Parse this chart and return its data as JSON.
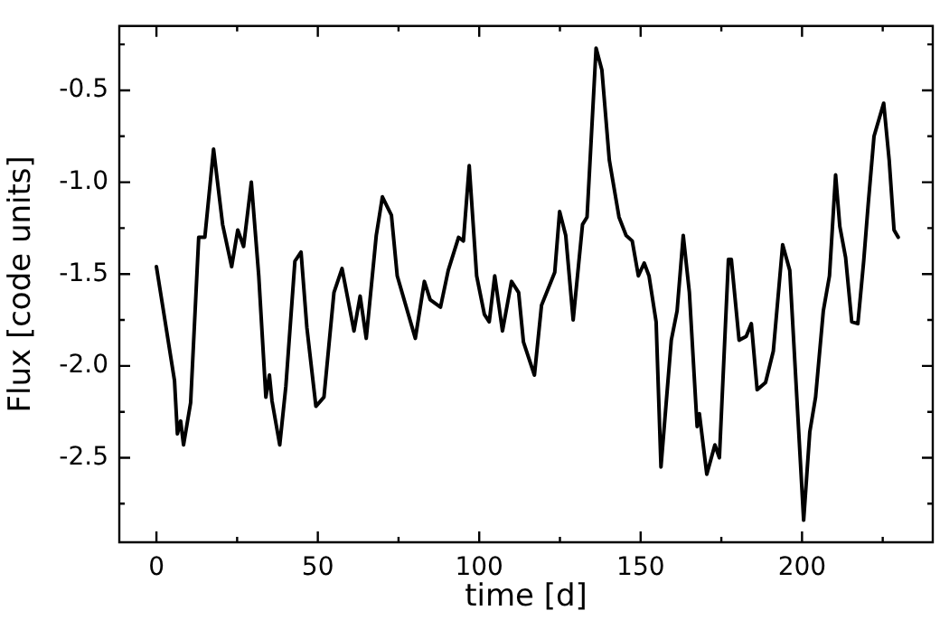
{
  "chart_data": {
    "type": "line",
    "xlabel": "time [d]",
    "ylabel": "Flux [code units]",
    "xlim": [
      -11.5,
      240.5
    ],
    "ylim": [
      -2.96,
      -0.15
    ],
    "xticks": [
      0,
      {
        "value": 25,
        "label": null
      },
      50,
      {
        "value": 75,
        "label": null
      },
      100,
      {
        "value": 125,
        "label": null
      },
      150,
      {
        "value": 175,
        "label": null
      },
      200,
      {
        "value": 225,
        "label": null
      }
    ],
    "yticks": [
      {
        "value": -2.75,
        "label": null
      },
      -2.5,
      {
        "value": -2.25,
        "label": null
      },
      {
        "value": -2,
        "label": "-2.0"
      },
      {
        "value": -1.75,
        "label": null
      },
      -1.5,
      {
        "value": -1.25,
        "label": null
      },
      {
        "value": -1,
        "label": "-1.0"
      },
      {
        "value": -0.75,
        "label": null
      },
      -0.5,
      {
        "value": -0.25,
        "label": null
      }
    ],
    "grid": false,
    "legend": false,
    "marker": "none",
    "line_style": "solid",
    "x": [
      0,
      1.9,
      5.6,
      6.5,
      7.5,
      8.4,
      10.6,
      13.1,
      15.0,
      17.7,
      20.5,
      23.3,
      25.2,
      27.0,
      29.4,
      31.7,
      33.9,
      35.0,
      35.8,
      38.2,
      40.1,
      42.9,
      44.8,
      46.6,
      49.4,
      51.9,
      55.0,
      57.5,
      61.2,
      63.1,
      65.0,
      68.1,
      70.0,
      72.8,
      74.6,
      80.2,
      83.0,
      84.8,
      88.0,
      90.4,
      93.6,
      95.1,
      96.9,
      99.2,
      101.6,
      103.1,
      104.8,
      107.2,
      110.0,
      112.2,
      113.7,
      117.1,
      119.3,
      123.4,
      124.9,
      126.8,
      129.1,
      132.0,
      133.4,
      136.2,
      138.0,
      140.3,
      143.3,
      145.5,
      147.4,
      149.3,
      151.1,
      152.6,
      154.8,
      156.3,
      159.5,
      161.3,
      163.2,
      165.1,
      167.5,
      168.2,
      170.5,
      173.0,
      174.4,
      177.2,
      178.1,
      180.5,
      182.7,
      184.3,
      186.1,
      188.7,
      191.1,
      194.0,
      196.2,
      200.5,
      202.4,
      204.2,
      206.6,
      208.5,
      210.4,
      211.7,
      213.5,
      215.4,
      217.3,
      219.1,
      220.5,
      222.3,
      225.3,
      227.0,
      228.5,
      229.8
    ],
    "series": [
      {
        "color": "#000000",
        "values": [
          -1.46,
          -1.67,
          -2.08,
          -2.37,
          -2.3,
          -2.43,
          -2.2,
          -1.3,
          -1.3,
          -0.82,
          -1.23,
          -1.46,
          -1.26,
          -1.35,
          -1.0,
          -1.51,
          -2.17,
          -2.05,
          -2.19,
          -2.43,
          -2.11,
          -1.43,
          -1.38,
          -1.79,
          -2.22,
          -2.17,
          -1.6,
          -1.47,
          -1.81,
          -1.62,
          -1.85,
          -1.29,
          -1.08,
          -1.18,
          -1.51,
          -1.85,
          -1.54,
          -1.64,
          -1.68,
          -1.48,
          -1.3,
          -1.32,
          -0.91,
          -1.51,
          -1.72,
          -1.76,
          -1.51,
          -1.81,
          -1.54,
          -1.6,
          -1.87,
          -2.05,
          -1.67,
          -1.49,
          -1.16,
          -1.29,
          -1.75,
          -1.23,
          -1.19,
          -0.27,
          -0.39,
          -0.88,
          -1.19,
          -1.29,
          -1.32,
          -1.51,
          -1.44,
          -1.51,
          -1.76,
          -2.55,
          -1.86,
          -1.7,
          -1.29,
          -1.6,
          -2.33,
          -2.26,
          -2.59,
          -2.43,
          -2.5,
          -1.42,
          -1.42,
          -1.86,
          -1.84,
          -1.77,
          -2.13,
          -2.09,
          -1.92,
          -1.34,
          -1.48,
          -2.84,
          -2.36,
          -2.17,
          -1.7,
          -1.51,
          -0.96,
          -1.24,
          -1.41,
          -1.76,
          -1.77,
          -1.43,
          -1.12,
          -0.75,
          -0.57,
          -0.88,
          -1.26,
          -1.3
        ]
      }
    ]
  }
}
